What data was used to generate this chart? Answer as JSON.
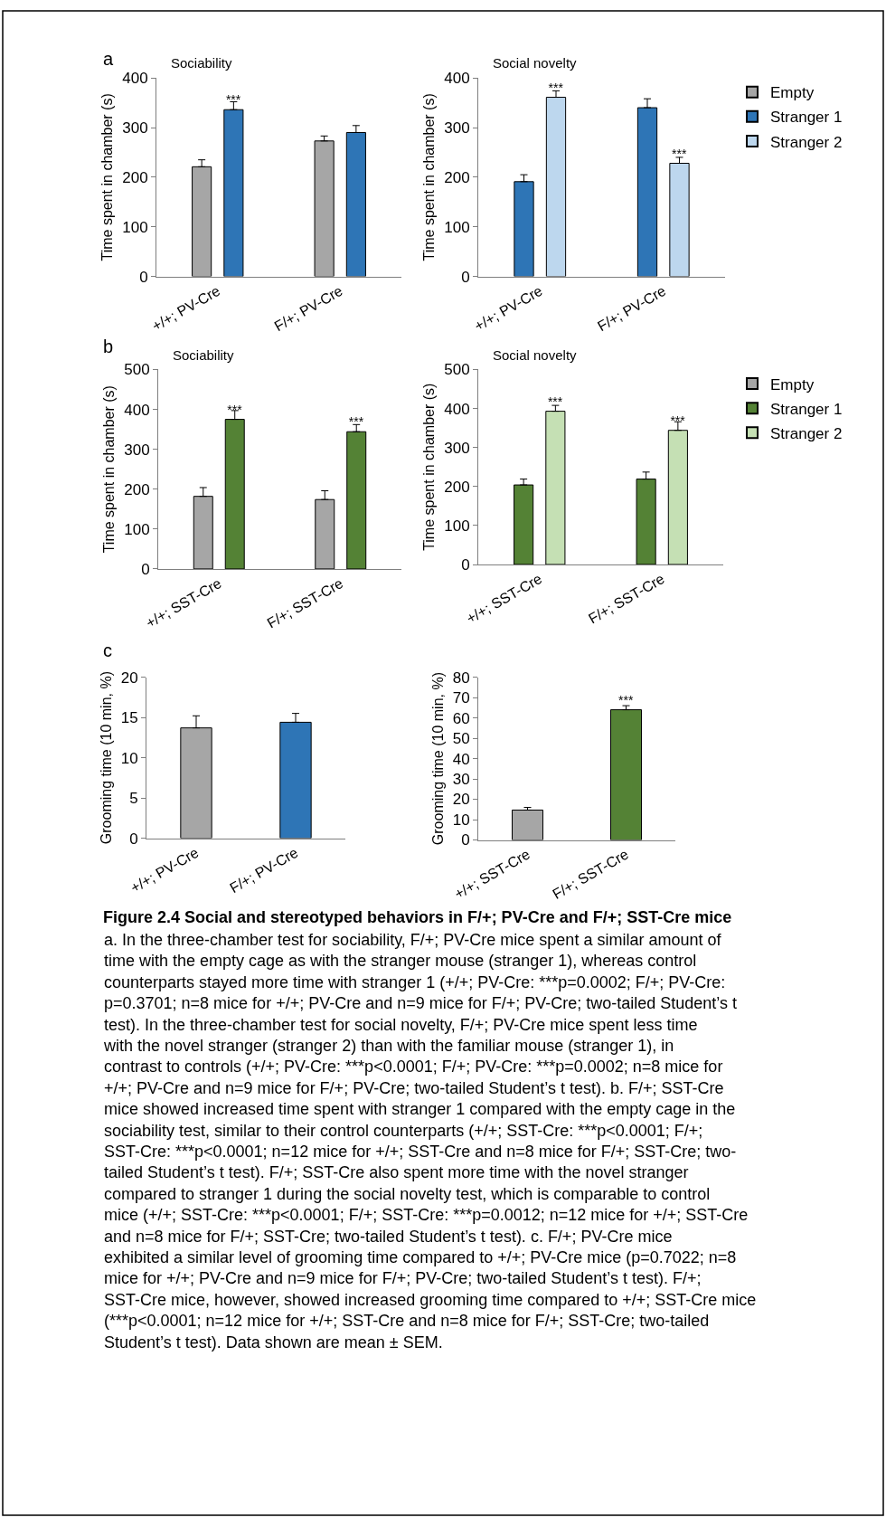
{
  "chart_data": [
    {
      "type": "bar",
      "title": "Sociability",
      "ylabel": "Time spent in chamber (s)",
      "categories": [
        "+/+; PV-Cre",
        "F/+; PV-Cre"
      ],
      "ylim": [
        0,
        400
      ],
      "yticks": [
        0,
        100,
        200,
        300,
        400
      ],
      "grid": false,
      "legend": "right",
      "annotations": [
        "a"
      ],
      "series": [
        {
          "name": "Empty",
          "color": "#a6a6a6",
          "values": [
            221,
            273
          ],
          "errors": [
            [
              221,
              235
            ],
            [
              273,
              283
            ]
          ],
          "value_labels": [
            null,
            null
          ]
        },
        {
          "color": "#2e75b6",
          "values": [
            336,
            290
          ],
          "errors": [
            [
              336,
              352
            ],
            [
              290,
              304
            ]
          ],
          "value_labels": [
            "***",
            null
          ]
        }
      ]
    },
    {
      "type": "bar",
      "title": "Social novelty",
      "ylabel": "Time spent in chamber (s)",
      "categories": [
        "+/+; PV-Cre",
        "F/+; PV-Cre"
      ],
      "ylim": [
        0,
        400
      ],
      "yticks": [
        0,
        100,
        200,
        300,
        400
      ],
      "grid": false,
      "legend": "right",
      "series": [
        {
          "name": "Stranger 1",
          "color": "#2e75b6",
          "values": [
            191,
            340
          ],
          "errors": [
            [
              191,
              205
            ],
            [
              340,
              358
            ]
          ],
          "value_labels": [
            null,
            null
          ]
        },
        {
          "name": "Stranger 2",
          "color": "#bdd7ee",
          "values": [
            361,
            228
          ],
          "errors": [
            [
              361,
              374
            ],
            [
              228,
              240
            ]
          ],
          "value_labels": [
            "***",
            "***"
          ]
        }
      ]
    },
    {
      "type": "bar",
      "title": "Sociability",
      "ylabel": "Time spent in chamber (s)",
      "categories": [
        "+/+; SST-Cre",
        "F/+; SST-Cre"
      ],
      "ylim": [
        0,
        500
      ],
      "yticks": [
        0,
        100,
        200,
        300,
        400,
        500
      ],
      "grid": false,
      "legend": "right",
      "annotations": [
        "b"
      ],
      "series": [
        {
          "name": "Empty",
          "color": "#a6a6a6",
          "values": [
            182,
            174
          ],
          "errors": [
            [
              182,
              204
            ],
            [
              174,
              196
            ]
          ],
          "value_labels": [
            null,
            null
          ]
        },
        {
          "color": "#548235",
          "values": [
            375,
            344
          ],
          "errors": [
            [
              375,
              397
            ],
            [
              344,
              362
            ]
          ],
          "value_labels": [
            "***",
            "***"
          ]
        }
      ]
    },
    {
      "type": "bar",
      "title": "Social novelty",
      "ylabel": "Time spent in chamber (s)",
      "categories": [
        "+/+; SST-Cre",
        "F/+; SST-Cre"
      ],
      "ylim": [
        0,
        500
      ],
      "yticks": [
        0,
        100,
        200,
        300,
        400,
        500
      ],
      "grid": false,
      "legend": "right",
      "series": [
        {
          "name": "Stranger 1",
          "color": "#548235",
          "values": [
            204,
            219
          ],
          "errors": [
            [
              204,
              219
            ],
            [
              219,
              237
            ]
          ],
          "value_labels": [
            null,
            null
          ]
        },
        {
          "name": "Stranger 2",
          "color": "#c5e0b4",
          "values": [
            393,
            344
          ],
          "errors": [
            [
              393,
              408
            ],
            [
              344,
              366
            ]
          ],
          "value_labels": [
            "***",
            "***"
          ]
        }
      ]
    },
    {
      "type": "bar",
      "ylabel": "Grooming time (10 min, %)",
      "categories": [
        "+/+; PV-Cre",
        "F/+; PV-Cre"
      ],
      "ylim": [
        0,
        20
      ],
      "yticks": [
        0,
        5,
        10,
        15,
        20
      ],
      "grid": false,
      "annotations": [
        "c"
      ],
      "series": [
        {
          "colors": [
            "#a6a6a6",
            "#2e75b6"
          ],
          "values": [
            13.7,
            14.4
          ],
          "errors": [
            [
              13.7,
              15.2
            ],
            [
              14.4,
              15.5
            ]
          ],
          "value_labels": [
            null,
            null
          ]
        }
      ]
    },
    {
      "type": "bar",
      "ylabel": "Grooming time (10 min, %)",
      "categories": [
        "+/+; SST-Cre",
        "F/+; SST-Cre"
      ],
      "ylim": [
        0,
        80
      ],
      "yticks": [
        0,
        10,
        20,
        30,
        40,
        50,
        60,
        70,
        80
      ],
      "grid": false,
      "annotations": [
        "Figure 2.4 Social and stereotyped behaviors in F/+; PV-Cre and F/+; SST-Cre mice",
        "a. In the three-chamber test for sociability, F/+; PV-Cre mice spent a similar amount of time with the empty cage as with the stranger mouse (stranger 1), whereas control counterparts stayed more time with stranger 1 (+/+; PV-Cre: ***p=0.0002; F/+; PV-Cre: p=0.3701; n=8 mice for +/+; PV-Cre and n=9 mice for F/+; PV-Cre; two-tailed Student’s t test). In the three-chamber test for social novelty, F/+; PV-Cre mice spent less time with the novel stranger (stranger 2) than with the familiar mouse (stranger 1), in contrast to controls (+/+; PV-Cre: ***p<0.0001; F/+; PV-Cre: ***p=0.0002; n=8 mice for +/+; PV-Cre and n=9 mice for F/+; PV-Cre; two-tailed Student’s t test). b. F/+; SST-Cre mice showed increased time spent with stranger 1 compared with the empty cage in the sociability test, similar to their control counterparts (+/+; SST-Cre: ***p<0.0001; F/+; SST-Cre: ***p<0.0001; n=12 mice for +/+; SST-Cre and n=8 mice for F/+; SST-Cre; two-tailed Student’s t test). F/+; SST-Cre also spent more time with the novel stranger compared to stranger 1 during the social novelty test, which is comparable to control mice (+/+; SST-Cre: ***p<0.0001; F/+; SST-Cre: ***p=0.0012; n=12 mice for +/+; SST-Cre and n=8 mice for F/+; SST-Cre; two-tailed Student’s t test). c. F/+; PV-Cre mice exhibited a similar level of grooming time compared to +/+; PV-Cre mice (p=0.7022; n=8 mice for +/+; PV-Cre and n=9 mice for F/+; PV-Cre; two-tailed Student’s t test). F/+; SST-Cre mice, however, showed increased grooming time compared to +/+; SST-Cre mice (***p<0.0001; n=12 mice for +/+; SST-Cre and n=8 mice for F/+; SST-Cre; two-tailed Student’s t test). Data shown are mean ± SEM."
      ],
      "series": [
        {
          "colors": [
            "#a6a6a6",
            "#548235"
          ],
          "values": [
            14.7,
            64.0
          ],
          "errors": [
            [
              14.7,
              16.0
            ],
            [
              64.0,
              66.0
            ]
          ],
          "value_labels": [
            null,
            "***"
          ]
        }
      ]
    }
  ]
}
